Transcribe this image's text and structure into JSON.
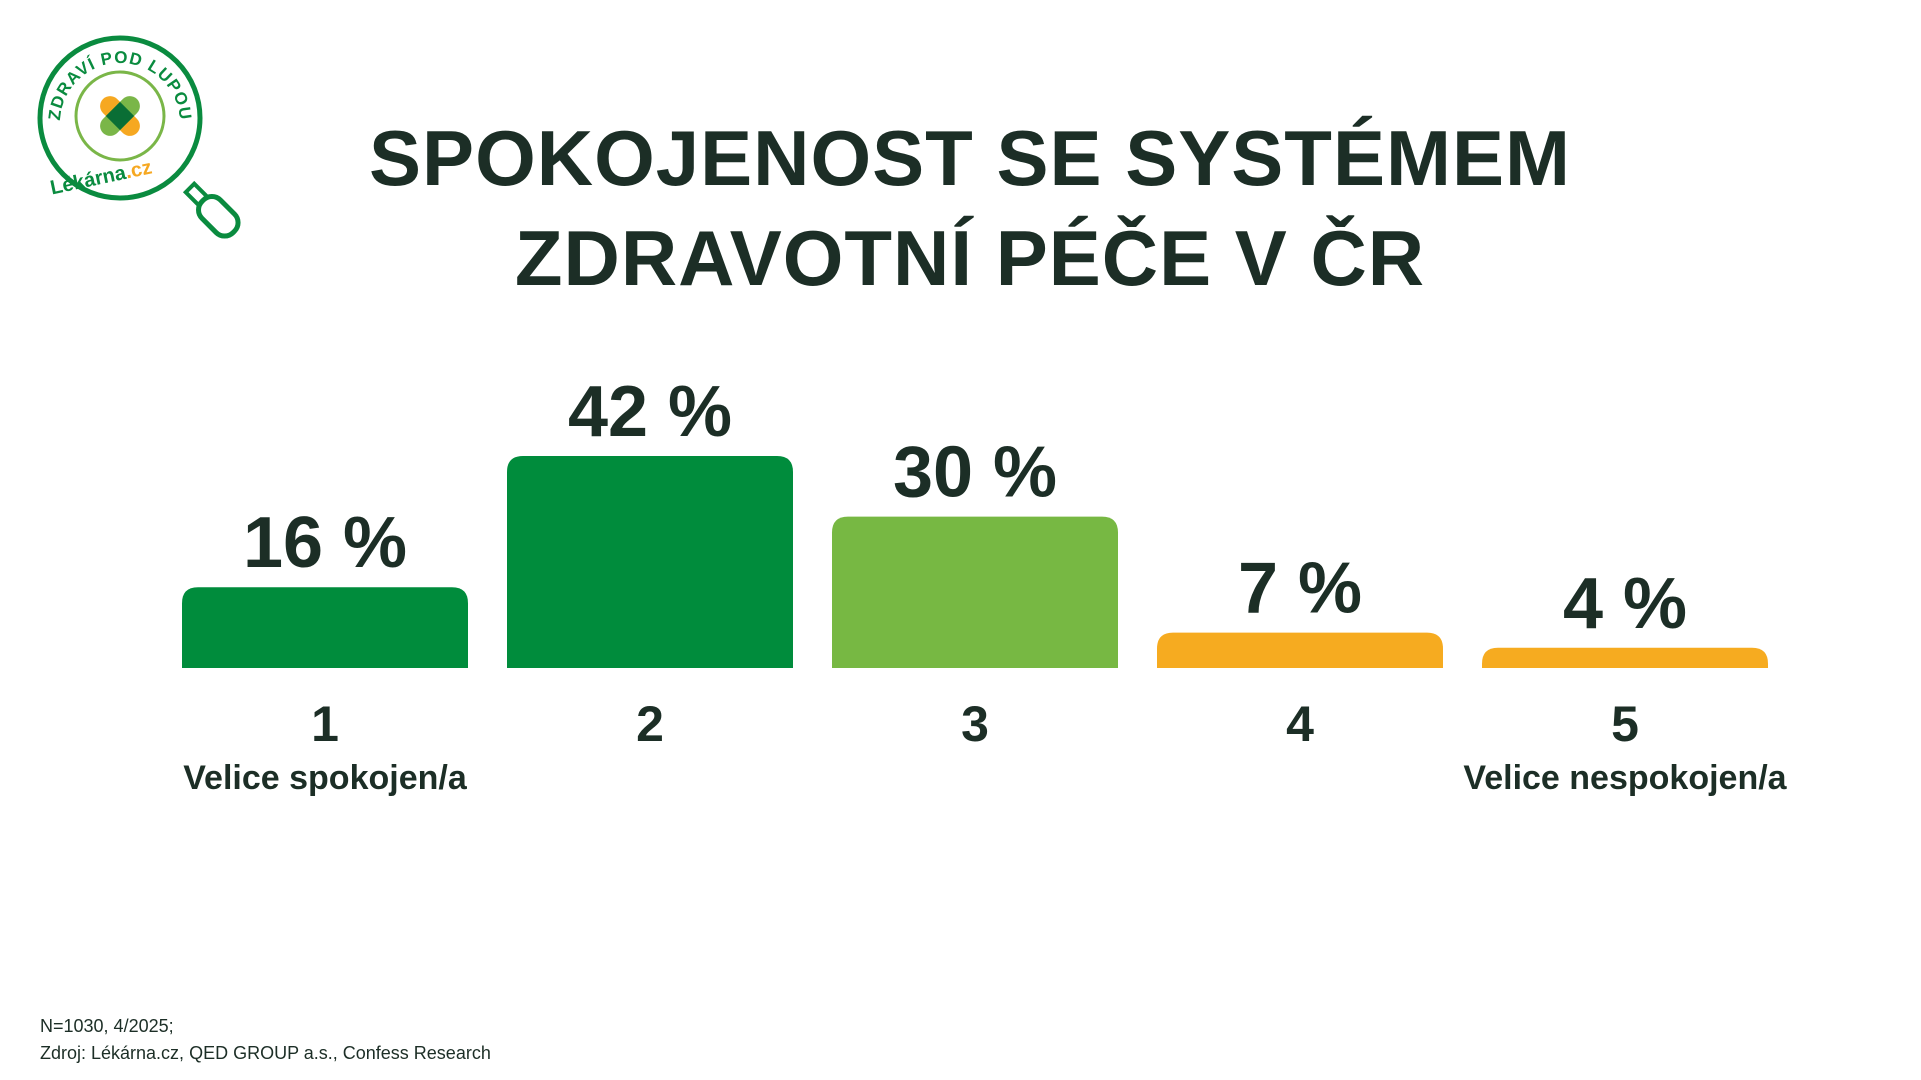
{
  "logo": {
    "arc_text": "ZDRAVÍ POD LUPOU",
    "brand": "Lékárna",
    "brand_suffix": ".cz",
    "icon": "magnifier-cross-icon",
    "colors": {
      "green": "#0a8b3f",
      "light_green": "#7ab648",
      "orange": "#f6a821"
    }
  },
  "title": {
    "line1": "SPOKOJENOST SE SYSTÉMEM",
    "line2": "ZDRAVOTNÍ PÉČE V ČR"
  },
  "chart_data": {
    "type": "bar",
    "categories": [
      "1",
      "2",
      "3",
      "4",
      "5"
    ],
    "values": [
      16,
      42,
      30,
      7,
      4
    ],
    "value_labels": [
      "16 %",
      "42 %",
      "30 %",
      "7 %",
      "4 %"
    ],
    "colors": [
      "#008c3c",
      "#008c3c",
      "#77b843",
      "#f6ab20",
      "#f6ab20"
    ],
    "scale_labels": {
      "first": "Velice spokojen/a",
      "last": "Velice nespokojen/a"
    },
    "ylim": [
      0,
      42
    ],
    "grid": false,
    "legend": "none"
  },
  "footnote": {
    "line1": "N=1030, 4/2025;",
    "line2": "Zdroj: Lékárna.cz, QED GROUP a.s., Confess Research"
  }
}
